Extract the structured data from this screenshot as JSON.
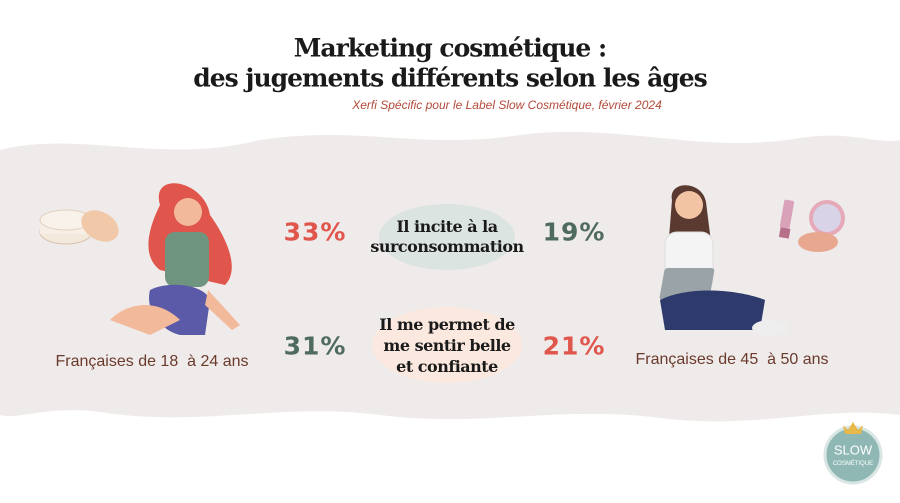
{
  "header": {
    "title": [
      "Marketing cosmétique :",
      "des jugements différents selon les âges"
    ],
    "source": "Xerfi Spécific pour le Label Slow Cosmétique, février 2024"
  },
  "groups": [
    "Françaises de 18  à 24 ans",
    "Françaises de 45  à 50 ans"
  ],
  "rows": [
    {
      "statement": [
        "Il incite à la",
        "surconsommation"
      ],
      "left": "33%",
      "right": "19%"
    },
    {
      "statement": [
        "Il me permet de",
        "me sentir belle",
        "et confiante"
      ],
      "left": "31%",
      "right": "21%"
    }
  ],
  "logo": [
    "SLOW",
    "COSMÉTIQUE"
  ]
}
